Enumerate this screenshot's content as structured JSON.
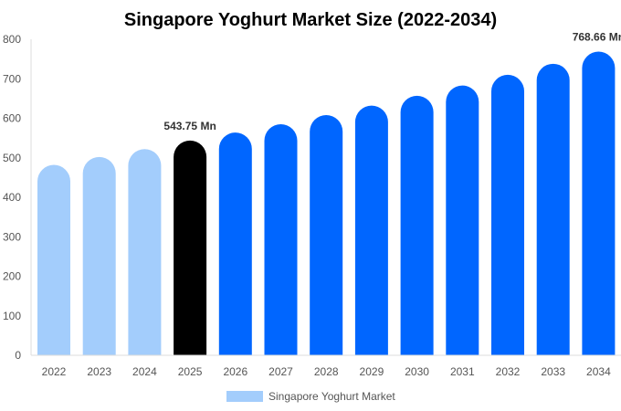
{
  "chart_data": {
    "type": "bar",
    "title": "Singapore Yoghurt Market Size (2022-2034)",
    "categories": [
      "2022",
      "2023",
      "2024",
      "2025",
      "2026",
      "2027",
      "2028",
      "2029",
      "2030",
      "2031",
      "2032",
      "2033",
      "2034"
    ],
    "series": [
      {
        "name": "Singapore Yoghurt Market",
        "values": [
          482,
          502,
          522,
          543.75,
          564,
          585,
          608,
          632,
          657,
          683,
          710,
          738,
          768.66
        ]
      }
    ],
    "bar_colors": [
      "#a3cdfc",
      "#a3cdfc",
      "#a3cdfc",
      "#000000",
      "#0066ff",
      "#0066ff",
      "#0066ff",
      "#0066ff",
      "#0066ff",
      "#0066ff",
      "#0066ff",
      "#0066ff",
      "#0066ff"
    ],
    "data_labels": [
      {
        "index": 3,
        "text": "543.75 Mn"
      },
      {
        "index": 12,
        "text": "768.66 Mn"
      }
    ],
    "yticks": [
      0,
      100,
      200,
      300,
      400,
      500,
      600,
      700,
      800
    ],
    "ylim": [
      0,
      800
    ],
    "xlabel": "",
    "ylabel": "",
    "grid": false,
    "legend": {
      "placement": "bottom",
      "color": "#a3cdfc"
    }
  }
}
